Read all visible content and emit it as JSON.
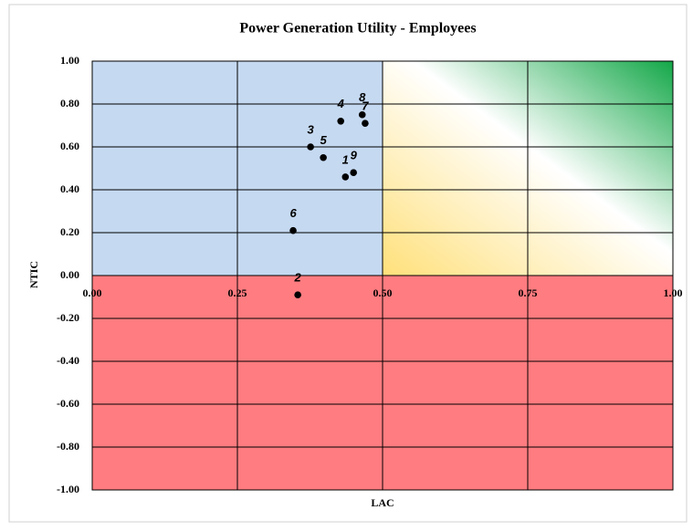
{
  "chart_data": {
    "type": "scatter",
    "title": "Power Generation Utility - Employees",
    "x_label": "LAC",
    "y_label": "NTIC",
    "series": [
      {
        "name": null,
        "color": "#000000",
        "x": [
          0.436,
          0.354,
          0.376,
          0.428,
          0.398,
          0.346,
          0.47,
          0.465,
          0.45
        ],
        "values": [
          0.46,
          -0.09,
          0.6,
          0.72,
          0.55,
          0.21,
          0.71,
          0.75,
          0.48
        ],
        "point_labels": [
          "1",
          "2",
          "3",
          "4",
          "5",
          "6",
          "7",
          "8",
          "9"
        ]
      }
    ],
    "xlim": [
      0,
      1
    ],
    "ylim": [
      -1,
      1
    ],
    "xticks": [
      {
        "value": 0,
        "label": "0.00"
      },
      {
        "value": 0.25,
        "label": "0.25"
      },
      {
        "value": 0.5,
        "label": "0.50"
      },
      {
        "value": 0.75,
        "label": "0.75"
      },
      {
        "value": 1,
        "label": "1.00"
      }
    ],
    "yticks": [
      {
        "value": 1,
        "label": "1.00"
      },
      {
        "value": 0.8,
        "label": "0.80"
      },
      {
        "value": 0.6,
        "label": "0.60"
      },
      {
        "value": 0.4,
        "label": "0.40"
      },
      {
        "value": 0.2,
        "label": "0.20"
      },
      {
        "value": 0,
        "label": "0.00"
      },
      {
        "value": -0.2,
        "label": "-0.20"
      },
      {
        "value": -0.4,
        "label": "-0.40"
      },
      {
        "value": -0.6,
        "label": "-0.60"
      },
      {
        "value": -0.8,
        "label": "-0.80"
      },
      {
        "value": -1,
        "label": "-1.00"
      }
    ],
    "grid": true,
    "region_colors": {
      "upper_left": "#c5d9f1",
      "lower": "#ff7c80",
      "upper_right": [
        "#ffe07a",
        "#ffffff",
        "#13a748"
      ]
    }
  }
}
